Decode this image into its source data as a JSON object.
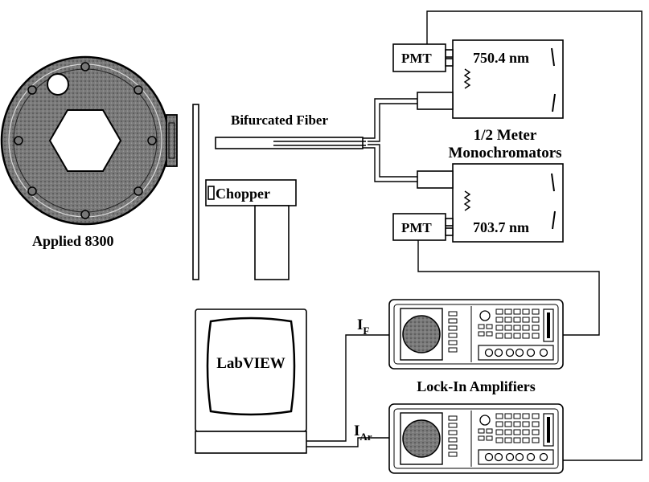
{
  "diagram": {
    "reactor": {
      "label": "Applied 8300"
    },
    "chopper": {
      "label": "Chopper"
    },
    "fiber": {
      "label": "Bifurcated Fiber"
    },
    "monochromators": {
      "label_line1": "1/2 Meter",
      "label_line2": "Monochromators",
      "top_wavelength": "750.4 nm",
      "bottom_wavelength": "703.7 nm"
    },
    "pmt_top": {
      "label": "PMT"
    },
    "pmt_bottom": {
      "label": "PMT"
    },
    "computer": {
      "label": "LabVIEW"
    },
    "lockin": {
      "label": "Lock-In Amplifiers"
    },
    "signals": {
      "top_main": "I",
      "top_sub": "F",
      "bottom_main": "I",
      "bottom_sub": "Ar"
    }
  }
}
